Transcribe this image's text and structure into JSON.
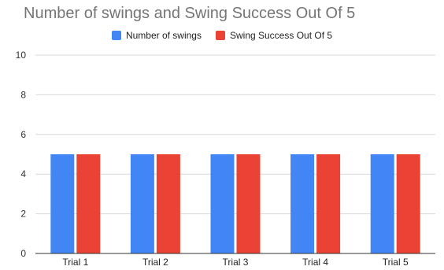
{
  "chart_data": {
    "type": "bar",
    "title": "Number of swings and Swing Success Out Of 5",
    "xlabel": "",
    "ylabel": "",
    "categories": [
      "Trial 1",
      "Trial 2",
      "Trial 3",
      "Trial 4",
      "Trial 5"
    ],
    "series": [
      {
        "name": "Number of swings",
        "values": [
          5,
          5,
          5,
          5,
          5
        ],
        "color": "#4285f4"
      },
      {
        "name": "Swing Success Out Of 5",
        "values": [
          5,
          5,
          5,
          5,
          5
        ],
        "color": "#ea4335"
      }
    ],
    "ylim": [
      0,
      10
    ],
    "yticks": [
      "0",
      "2",
      "4",
      "6",
      "8",
      "10"
    ],
    "grid": true,
    "legend_position": "top"
  }
}
